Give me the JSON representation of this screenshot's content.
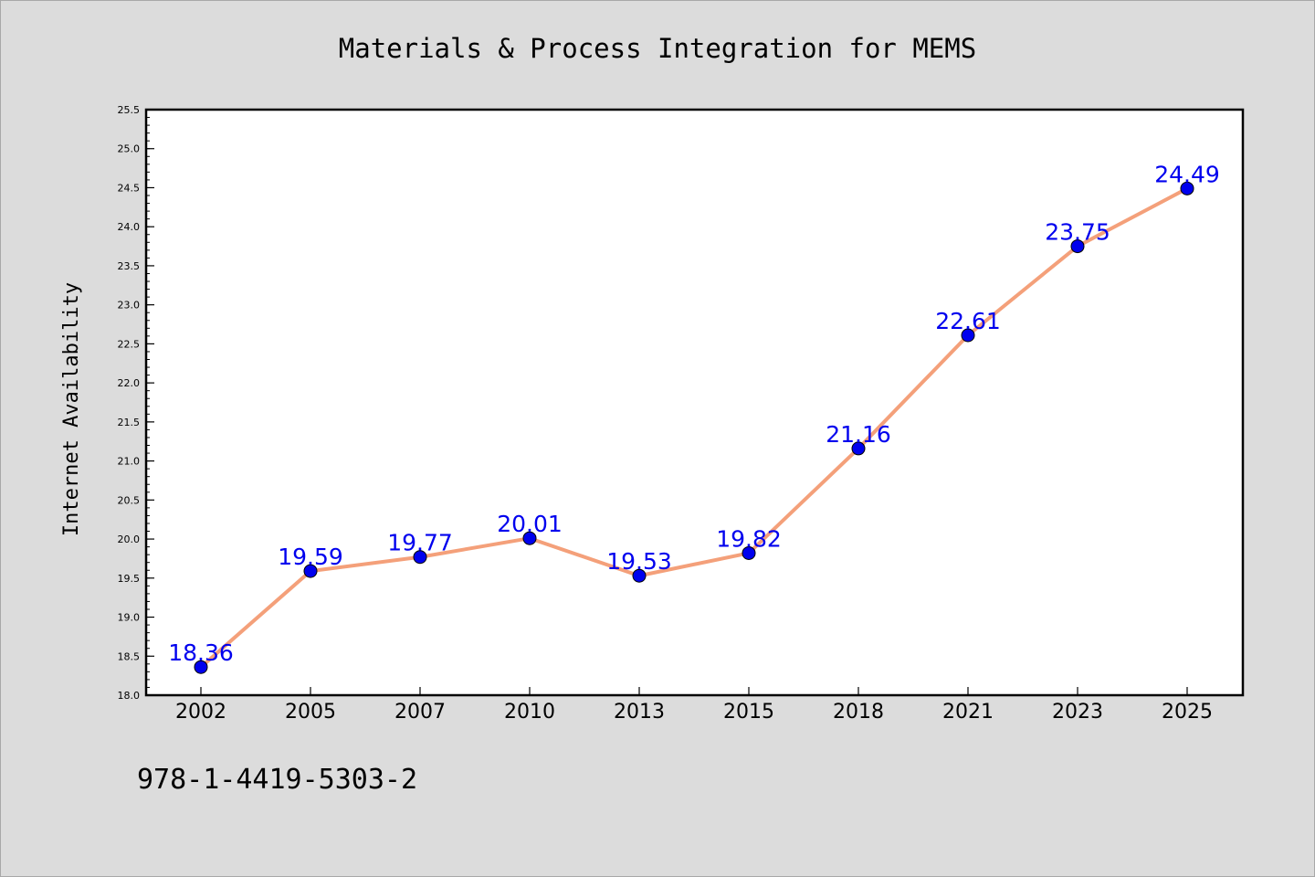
{
  "chart_data": {
    "type": "line",
    "title": "Materials & Process Integration for MEMS",
    "xlabel": "",
    "ylabel": "Internet Availability",
    "categories": [
      "2002",
      "2005",
      "2007",
      "2010",
      "2013",
      "2015",
      "2018",
      "2021",
      "2023",
      "2025"
    ],
    "values": [
      18.36,
      19.59,
      19.77,
      20.01,
      19.53,
      19.82,
      21.16,
      22.61,
      23.75,
      24.49
    ],
    "data_labels": [
      "18.36",
      "19.59",
      "19.77",
      "20.01",
      "19.53",
      "19.82",
      "21.16",
      "22.61",
      "23.75",
      "24.49"
    ],
    "ylim": [
      18.0,
      25.5
    ],
    "yticks": [
      "18.0",
      "18.5",
      "19.0",
      "19.5",
      "20.0",
      "20.5",
      "21.0",
      "21.5",
      "22.0",
      "22.5",
      "23.0",
      "23.5",
      "24.0",
      "24.5",
      "25.0",
      "25.5"
    ],
    "grid": false,
    "legend": "none",
    "colors": {
      "line": "#f4a07a",
      "marker": "#0000ee",
      "data_label": "#0000ee",
      "plot_background": "#ffffff",
      "figure_background": "#dcdcdc"
    }
  },
  "footnote": "978-1-4419-5303-2"
}
